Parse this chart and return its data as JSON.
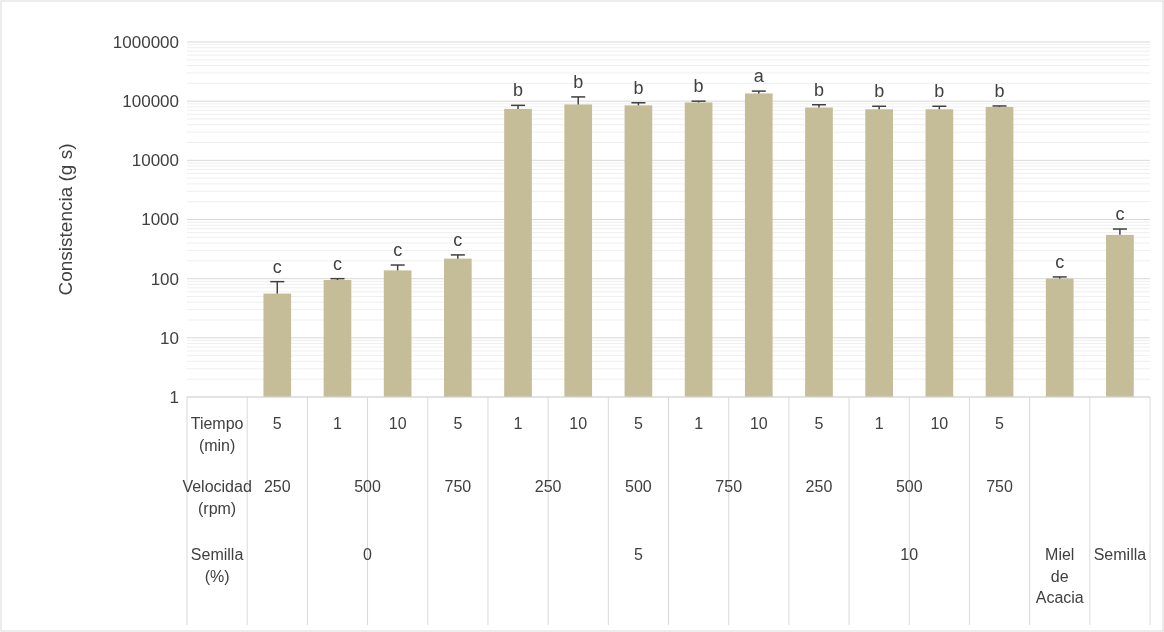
{
  "chart_data": {
    "type": "bar",
    "ylabel": "Consistencia (g s)",
    "log": "y",
    "grid": true,
    "categories": [
      "Tiempo\n(min)",
      "5",
      "1",
      "10",
      "5",
      "1",
      "10",
      "5",
      "1",
      "10",
      "5",
      "1",
      "10",
      "5",
      null,
      null
    ],
    "values": [
      null,
      56,
      95,
      138,
      218,
      74000,
      88000,
      85000,
      95000,
      135000,
      78000,
      73000,
      73000,
      80000,
      100,
      550
    ],
    "errors": [
      null,
      [
        56,
        89
      ],
      [
        95,
        100
      ],
      [
        138,
        170
      ],
      [
        218,
        252
      ],
      [
        74000,
        85000
      ],
      [
        88000,
        118000
      ],
      [
        85000,
        94000
      ],
      [
        95000,
        100000
      ],
      [
        135000,
        148000
      ],
      [
        78000,
        87000
      ],
      [
        73000,
        82000
      ],
      [
        73000,
        82000
      ],
      [
        80000,
        83000
      ],
      [
        100,
        107
      ],
      [
        550,
        690
      ]
    ],
    "value_labels": [
      null,
      "c",
      "c",
      "c",
      "c",
      "b",
      "b",
      "b",
      "b",
      "a",
      "b",
      "b",
      "b",
      "b",
      "c",
      "c"
    ],
    "color": "#c4bd97",
    "ylim": [
      1,
      1000000
    ],
    "yticks": [
      1,
      10,
      100,
      1000,
      10000,
      100000,
      1000000
    ],
    "annotations": [
      "Velocidad\n(rpm)",
      "250",
      "500",
      "750",
      "250",
      "500",
      "750",
      "250",
      "500",
      "750",
      "Semilla\n(%)",
      "0",
      "5",
      "10",
      "Miel\nde\nAcacia",
      "Semilla"
    ]
  }
}
